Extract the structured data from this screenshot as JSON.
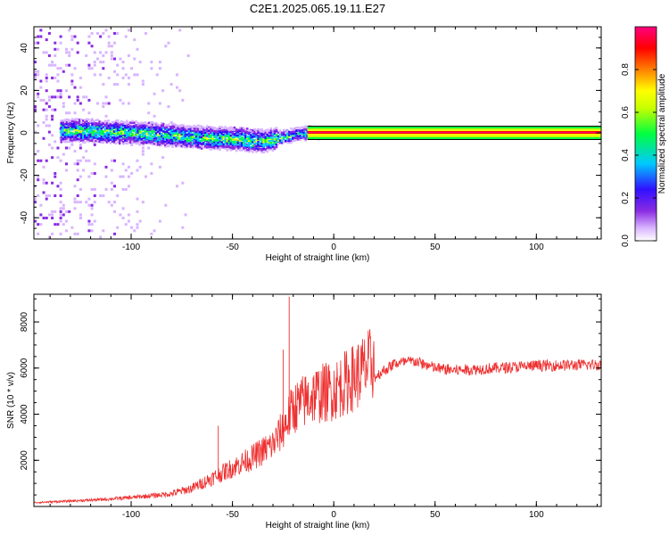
{
  "chart_data": [
    {
      "type": "heatmap",
      "title": "C2E1.2025.065.19.11.E27",
      "xlabel": "Height of straight line (km)",
      "ylabel": "Frequency (Hz)",
      "xlim": [
        -148,
        132
      ],
      "ylim": [
        -50,
        50
      ],
      "xticks": [
        -100,
        -50,
        0,
        50,
        100
      ],
      "yticks": [
        -40,
        -20,
        0,
        20,
        40
      ],
      "colorbar": {
        "label": "Normalized spectral amplitude",
        "range": [
          0,
          1
        ],
        "ticks": [
          0.0,
          0.2,
          0.4,
          0.6,
          0.8
        ],
        "tick_labels": [
          "0.0",
          "0.2",
          "0.4",
          "0.6",
          "0.8"
        ],
        "colors": [
          "#ffffff",
          "#d8b4ff",
          "#8a2be2",
          "#3010ff",
          "#00c8ff",
          "#00ff40",
          "#c8ff00",
          "#ffff00",
          "#ff8000",
          "#ff0000",
          "#ff0080"
        ]
      },
      "features": {
        "noise_region_x": [
          -148,
          -72
        ],
        "tone_start_x": -28,
        "tone_frequency": 0,
        "frequency_drift": [
          {
            "x": -130,
            "f": 1
          },
          {
            "x": -100,
            "f": 0
          },
          {
            "x": -70,
            "f": -2
          },
          {
            "x": -50,
            "f": -3
          },
          {
            "x": -35,
            "f": -4
          },
          {
            "x": -20,
            "f": -1
          },
          {
            "x": -10,
            "f": 0
          },
          {
            "x": 0,
            "f": 0
          }
        ]
      }
    },
    {
      "type": "line",
      "xlabel": "Height of straight line (km)",
      "ylabel": "SNR (10 * v/v)",
      "xlim": [
        -148,
        132
      ],
      "ylim": [
        0,
        9200
      ],
      "xticks": [
        -100,
        -50,
        0,
        50,
        100
      ],
      "yticks": [
        2000,
        4000,
        6000,
        8000
      ],
      "series": [
        {
          "name": "SNR",
          "color": "#ee3030",
          "trend_x": [
            -148,
            -120,
            -100,
            -80,
            -70,
            -60,
            -50,
            -40,
            -30,
            -25,
            -20,
            -10,
            0,
            10,
            20,
            30,
            40,
            50,
            60,
            80,
            100,
            132
          ],
          "trend_y": [
            150,
            250,
            350,
            500,
            700,
            1100,
            1500,
            1900,
            2400,
            3000,
            3800,
            4300,
            4500,
            5000,
            5600,
            6200,
            6300,
            6000,
            5900,
            6000,
            6100,
            6150
          ],
          "spikes": [
            {
              "x": -22,
              "y": 9100
            },
            {
              "x": -25,
              "y": 6800
            },
            {
              "x": -57,
              "y": 3500
            }
          ]
        }
      ]
    }
  ]
}
